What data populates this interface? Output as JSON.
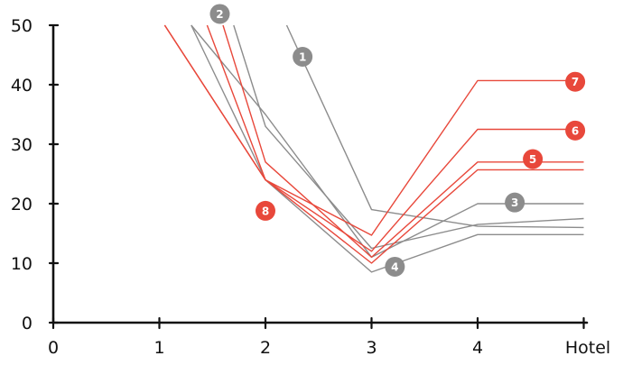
{
  "chart_data": {
    "type": "line",
    "xlabel": "Hotel",
    "ylabel": "",
    "xlim": [
      0,
      5
    ],
    "ylim": [
      0,
      50
    ],
    "x_ticks": [
      {
        "value": 0,
        "label": "0"
      },
      {
        "value": 1,
        "label": "1"
      },
      {
        "value": 2,
        "label": "2"
      },
      {
        "value": 3,
        "label": "3"
      },
      {
        "value": 4,
        "label": "4"
      }
    ],
    "y_ticks": [
      {
        "value": 0,
        "label": "0"
      },
      {
        "value": 10,
        "label": "10"
      },
      {
        "value": 20,
        "label": "20"
      },
      {
        "value": 30,
        "label": "30"
      },
      {
        "value": 40,
        "label": "40"
      },
      {
        "value": 50,
        "label": "50"
      }
    ],
    "colors": {
      "gray": "#8c8c8c",
      "red": "#e8483b"
    },
    "series": [
      {
        "label": "1",
        "color": "gray",
        "points": [
          [
            2.2,
            50
          ],
          [
            3,
            19
          ],
          [
            4,
            16.2
          ],
          [
            5,
            16
          ]
        ],
        "marker": [
          2.35,
          44.7
        ]
      },
      {
        "label": "2",
        "color": "gray",
        "points": [
          [
            1.7,
            50
          ],
          [
            2,
            33
          ],
          [
            3,
            12.5
          ],
          [
            4,
            16.5
          ],
          [
            5,
            17.5
          ]
        ],
        "marker": [
          1.57,
          51.9
        ]
      },
      {
        "label": "3",
        "color": "gray",
        "points": [
          [
            1.3,
            50
          ],
          [
            2,
            35
          ],
          [
            3,
            11
          ],
          [
            4,
            20
          ],
          [
            5,
            20
          ]
        ],
        "marker": [
          4.35,
          20.2
        ]
      },
      {
        "label": "4",
        "color": "gray",
        "points": [
          [
            1.3,
            50
          ],
          [
            2,
            24
          ],
          [
            3,
            8.5
          ],
          [
            4,
            14.8
          ],
          [
            5,
            14.8
          ]
        ],
        "marker": [
          3.22,
          9.4
        ]
      },
      {
        "label": "5",
        "color": "red",
        "points": [
          [
            1.6,
            50
          ],
          [
            2,
            27
          ],
          [
            3,
            11
          ],
          [
            4,
            27
          ],
          [
            5,
            27
          ]
        ],
        "marker": [
          4.52,
          27.5
        ]
      },
      {
        "label": "6",
        "color": "red",
        "points": [
          [
            1.45,
            50
          ],
          [
            2,
            24
          ],
          [
            3,
            12
          ],
          [
            4,
            32.5
          ],
          [
            5,
            32.5
          ]
        ],
        "marker": [
          4.92,
          32.3
        ]
      },
      {
        "label": "7",
        "color": "red",
        "points": [
          [
            1.05,
            50
          ],
          [
            2,
            24
          ],
          [
            3,
            14.7
          ],
          [
            4,
            40.7
          ],
          [
            5,
            40.7
          ]
        ],
        "marker": [
          4.92,
          40.5
        ]
      },
      {
        "label": "8",
        "color": "red",
        "points": [
          [
            1.05,
            50
          ],
          [
            2,
            24
          ],
          [
            3,
            10
          ],
          [
            4,
            25.7
          ],
          [
            5,
            25.7
          ]
        ],
        "marker": [
          2,
          18.8
        ]
      }
    ]
  }
}
